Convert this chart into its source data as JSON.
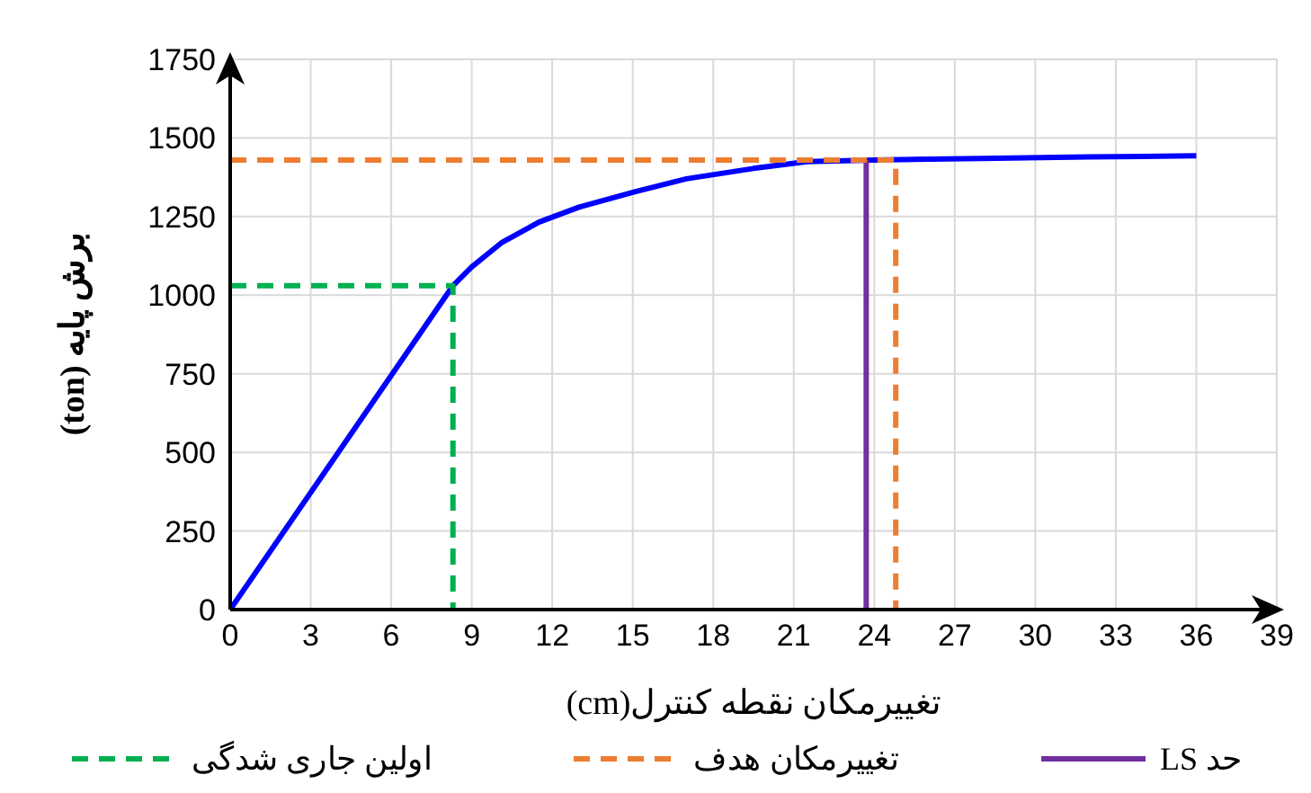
{
  "chart_data": {
    "type": "line",
    "xlabel": "تغییرمکان نقطه کنترل(cm)",
    "ylabel": "برش پایه (ton)",
    "xlim": [
      0,
      39
    ],
    "xticks": [
      0,
      3,
      6,
      9,
      12,
      15,
      18,
      21,
      24,
      27,
      30,
      33,
      36,
      39
    ],
    "ylim": [
      0,
      1750
    ],
    "yticks": [
      0,
      250,
      500,
      750,
      1000,
      1250,
      1500,
      1750
    ],
    "grid": true,
    "legend": "bottom",
    "marker": "none",
    "series": [
      {
        "color": "#0000ff",
        "line_style": "solid",
        "x": [
          0,
          8.3,
          9,
          10.1,
          11.5,
          13,
          15.1,
          17,
          19.5,
          21.5,
          24,
          28,
          32,
          36
        ],
        "values": [
          0,
          1030,
          1090,
          1166,
          1232,
          1280,
          1329,
          1370,
          1403,
          1425,
          1430,
          1435,
          1440,
          1443
        ]
      },
      {
        "name": "حد LS",
        "color": "#7030a0",
        "line_style": "solid",
        "x": [
          23.7,
          23.7
        ],
        "values": [
          0,
          1430
        ]
      },
      {
        "name": "تغییرمکان هدف",
        "color": "#ed7d31",
        "line_style": "dashed",
        "x": [
          0,
          24.8,
          24.8
        ],
        "values": [
          1430,
          1430,
          0
        ]
      },
      {
        "name": "اولین جاری شدگی",
        "color": "#00b050",
        "line_style": "dashed",
        "x": [
          0,
          8.3,
          8.3
        ],
        "values": [
          1030,
          1030,
          0
        ]
      }
    ]
  }
}
